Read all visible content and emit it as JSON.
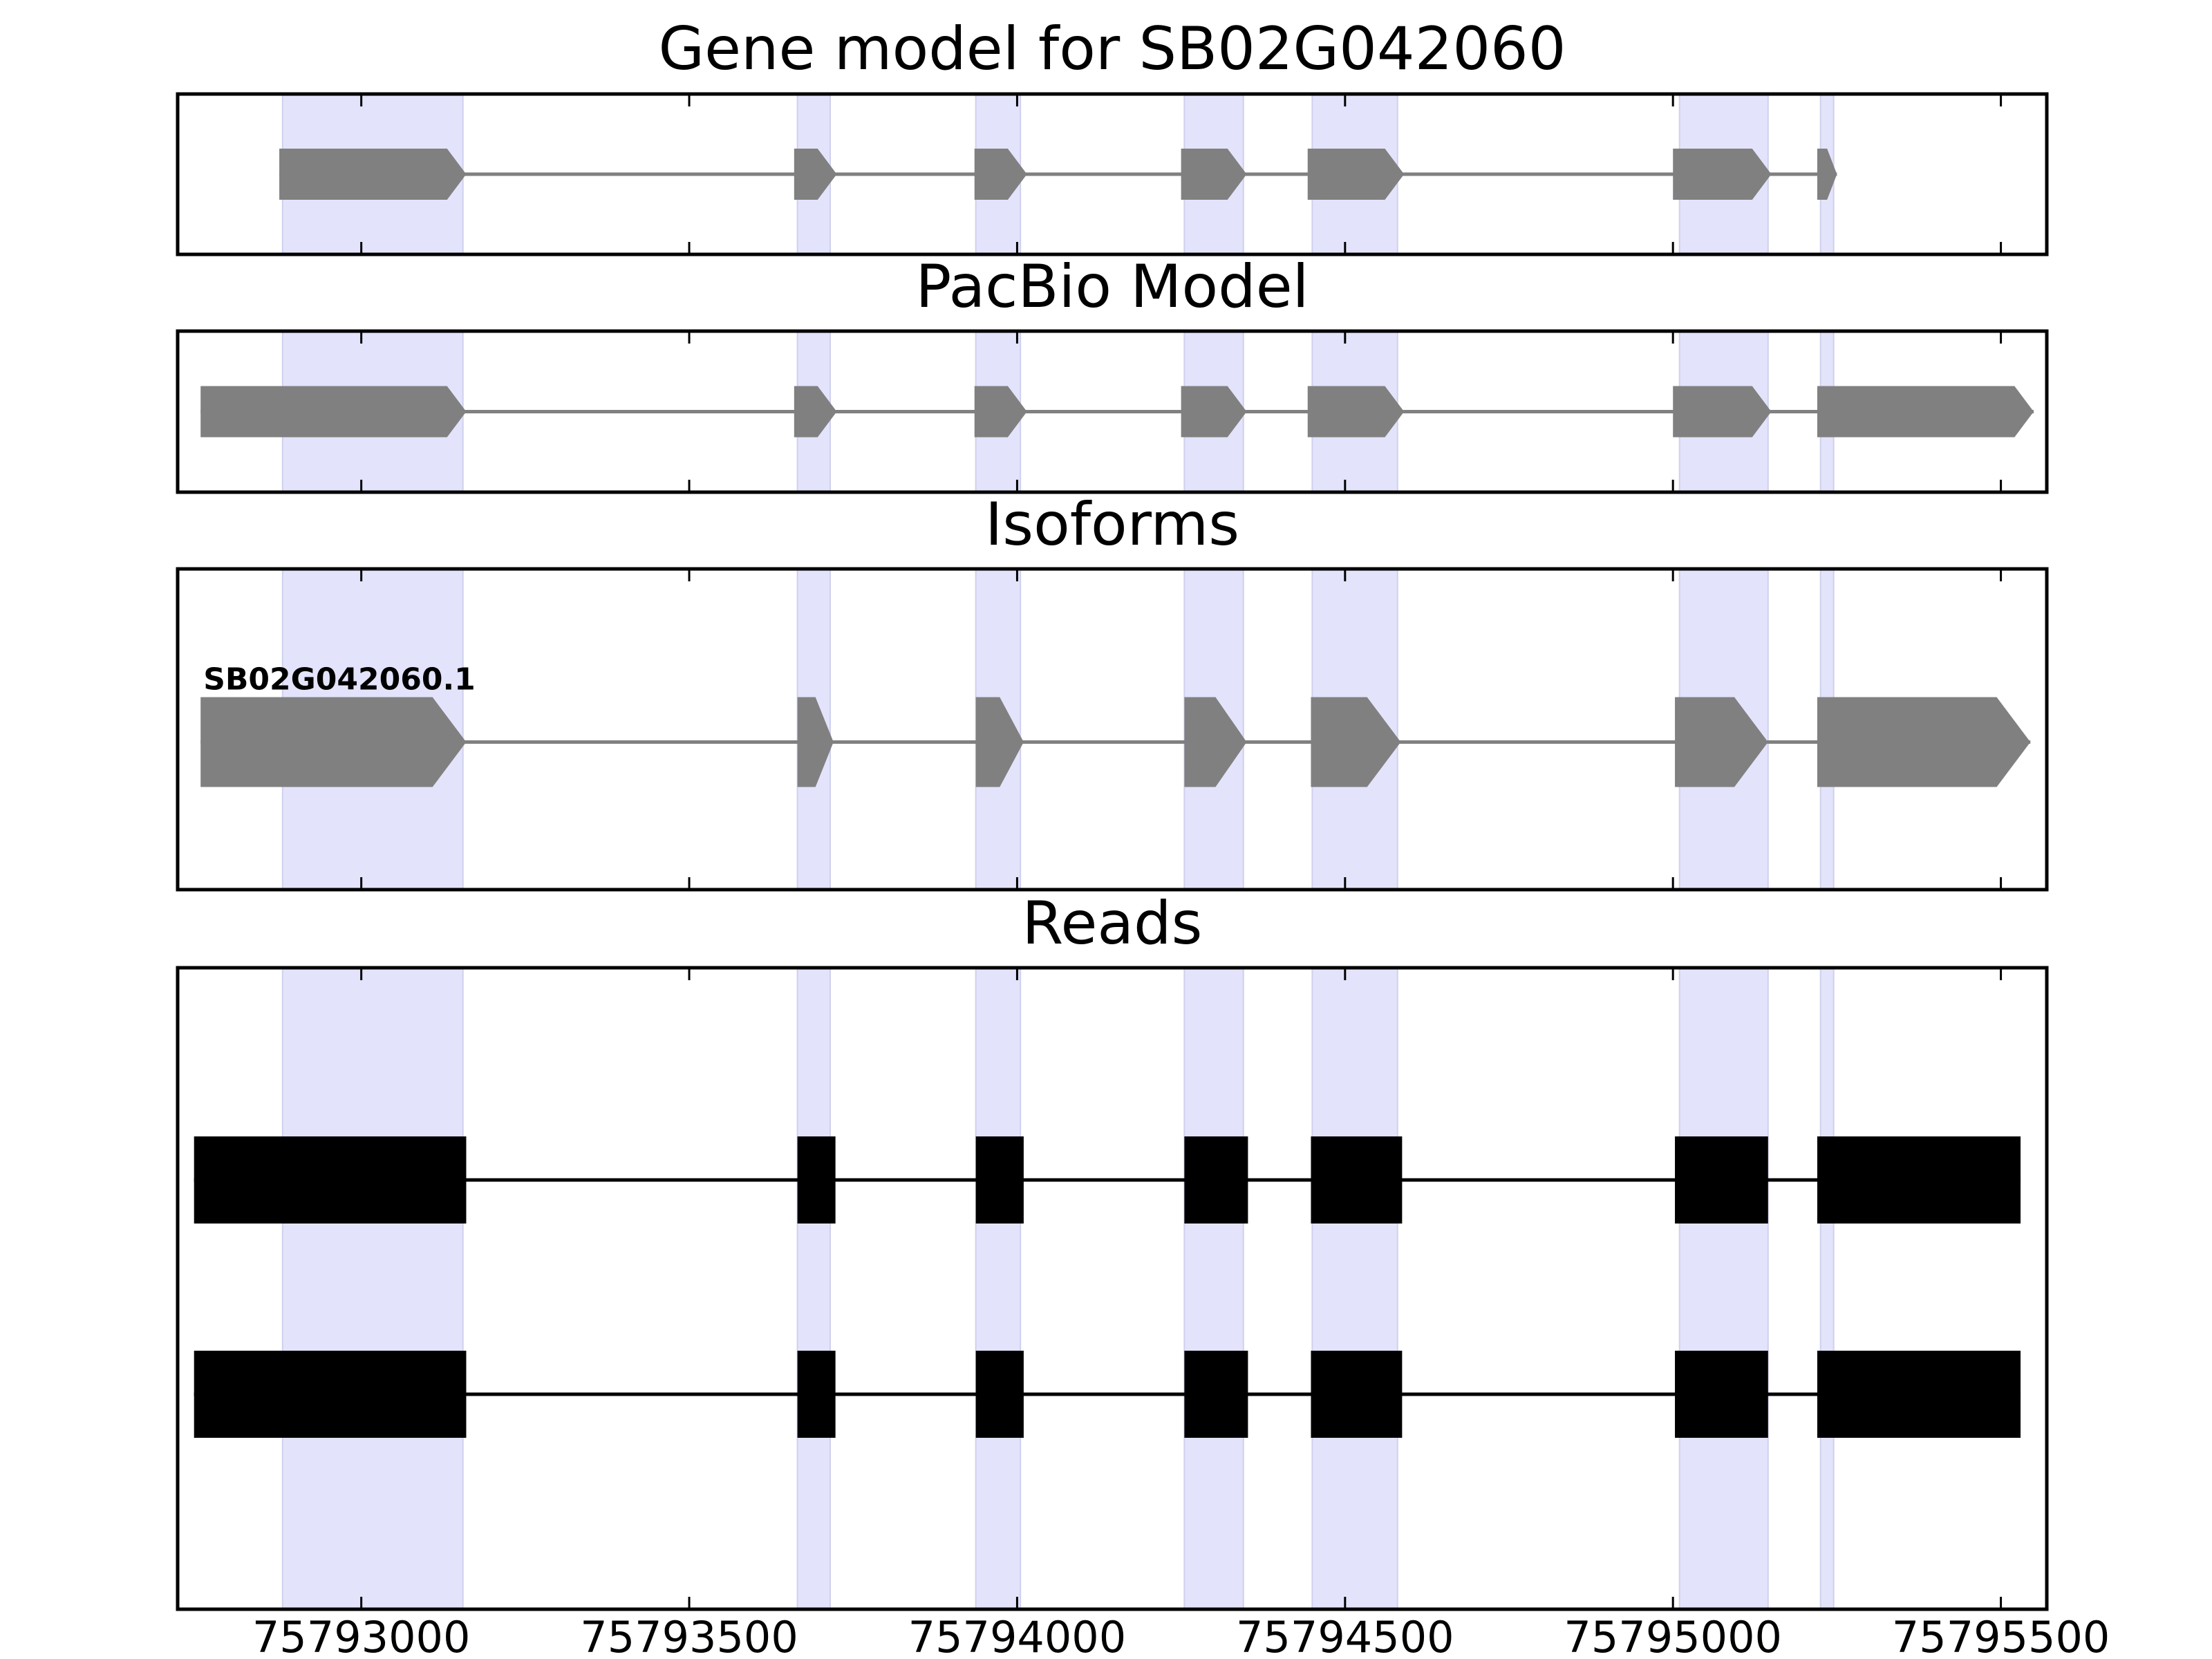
{
  "chart_data": {
    "type": "gene-structure",
    "xlim": [
      75792720,
      75795570
    ],
    "x_ticks": [
      75793000,
      75793500,
      75794000,
      75794500,
      75795000,
      75795500
    ],
    "x_tick_labels": [
      "75793000",
      "75793500",
      "75794000",
      "75794500",
      "75795000",
      "75795500"
    ],
    "highlight_color": "#e3e3fb",
    "highlight_regions": [
      [
        75792880,
        75793155
      ],
      [
        75793665,
        75793715
      ],
      [
        75793937,
        75794005
      ],
      [
        75794255,
        75794345
      ],
      [
        75794450,
        75794580
      ],
      [
        75795010,
        75795145
      ],
      [
        75795225,
        75795245
      ]
    ],
    "panels": [
      {
        "title": "Gene model for SB02G042060",
        "feature_color": "#808080",
        "tracks": [
          {
            "label": "",
            "strand": "+",
            "exons": [
              [
                75792875,
                75793160
              ],
              [
                75793660,
                75793725
              ],
              [
                75793935,
                75794015
              ],
              [
                75794250,
                75794350
              ],
              [
                75794443,
                75794590
              ],
              [
                75795000,
                75795150
              ],
              [
                75795220,
                75795250
              ]
            ]
          }
        ]
      },
      {
        "title": "PacBio Model",
        "feature_color": "#808080",
        "tracks": [
          {
            "label": "",
            "strand": "+",
            "exons": [
              [
                75792755,
                75793160
              ],
              [
                75793660,
                75793725
              ],
              [
                75793935,
                75794015
              ],
              [
                75794250,
                75794350
              ],
              [
                75794443,
                75794590
              ],
              [
                75795000,
                75795150
              ],
              [
                75795220,
                75795550
              ]
            ]
          }
        ]
      },
      {
        "title": "Isoforms",
        "feature_color": "#808080",
        "tracks": [
          {
            "label": "SB02G042060.1",
            "strand": "+",
            "exons": [
              [
                75792755,
                75793160
              ],
              [
                75793665,
                75793720
              ],
              [
                75793937,
                75794010
              ],
              [
                75794255,
                75794350
              ],
              [
                75794448,
                75794585
              ],
              [
                75795003,
                75795145
              ],
              [
                75795220,
                75795545
              ]
            ]
          }
        ]
      },
      {
        "title": "Reads",
        "feature_color": "#000000",
        "tracks": [
          {
            "label": "",
            "strand": "",
            "exons": [
              [
                75792745,
                75793160
              ],
              [
                75793665,
                75793723
              ],
              [
                75793937,
                75794010
              ],
              [
                75794255,
                75794352
              ],
              [
                75794448,
                75794587
              ],
              [
                75795003,
                75795145
              ],
              [
                75795220,
                75795530
              ]
            ]
          },
          {
            "label": "",
            "strand": "",
            "exons": [
              [
                75792745,
                75793160
              ],
              [
                75793665,
                75793723
              ],
              [
                75793937,
                75794010
              ],
              [
                75794255,
                75794352
              ],
              [
                75794448,
                75794587
              ],
              [
                75795003,
                75795145
              ],
              [
                75795220,
                75795530
              ]
            ]
          }
        ]
      }
    ]
  }
}
